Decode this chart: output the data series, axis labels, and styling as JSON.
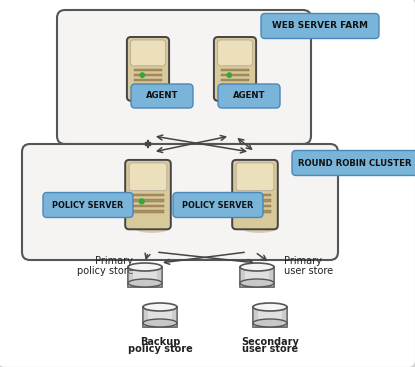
{
  "bg_color": "#ffffff",
  "box_fill": "#f5f4f2",
  "box_edge": "#666666",
  "badge_fill": "#7ab4d8",
  "badge_edge": "#4a88bb",
  "server_body": "#d8c99a",
  "server_top": "#ece0bc",
  "server_shadow": "#b8a870",
  "server_slot": "#a89060",
  "db_body": "#e0e0e0",
  "db_top": "#f5f5f5",
  "db_edge": "#555555",
  "arrow_color": "#444444",
  "text_dark": "#111111",
  "text_store": "#222222",
  "web_server_farm_label": "WEB SERVER FARM",
  "round_robin_label": "ROUND ROBIN CLUSTER",
  "agent_label": "AGENT",
  "policy_server_label": "POLICY SERVER",
  "primary_policy_store_1": "Primary",
  "primary_policy_store_2": "policy store",
  "backup_policy_store_1": "Backup",
  "backup_policy_store_2": "policy store",
  "primary_user_store_1": "Primary",
  "primary_user_store_2": "user store",
  "secondary_user_store_1": "Secondary",
  "secondary_user_store_2": "user store",
  "figw": 4.15,
  "figh": 3.67,
  "dpi": 100
}
